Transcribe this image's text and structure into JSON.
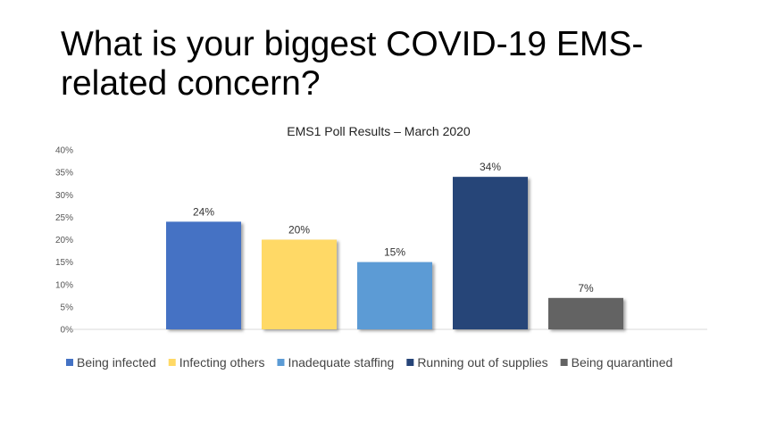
{
  "slide": {
    "title": "What is your biggest COVID-19 EMS-related concern?"
  },
  "chart_data": {
    "type": "bar",
    "title": "EMS1 Poll Results – March 2020",
    "xlabel": "",
    "ylabel": "",
    "categories": [
      "Being infected",
      "Infecting others",
      "Inadequate staffing",
      "Running out of supplies",
      "Being quarantined"
    ],
    "values": [
      24,
      20,
      15,
      34,
      7
    ],
    "data_labels": [
      "24%",
      "20%",
      "15%",
      "34%",
      "7%"
    ],
    "colors": [
      "#4472C4",
      "#FFD966",
      "#5B9BD5",
      "#264478",
      "#636363"
    ],
    "ylim": [
      0,
      40
    ],
    "yticks": [
      0,
      5,
      10,
      15,
      20,
      25,
      30,
      35,
      40
    ],
    "ytick_labels": [
      "0%",
      "5%",
      "10%",
      "15%",
      "20%",
      "25%",
      "30%",
      "35%",
      "40%"
    ],
    "grid": false,
    "legend": {
      "position": "bottom",
      "entries": [
        "Being infected",
        "Infecting others",
        "Inadequate staffing",
        "Running out of supplies",
        "Being quarantined"
      ]
    }
  }
}
